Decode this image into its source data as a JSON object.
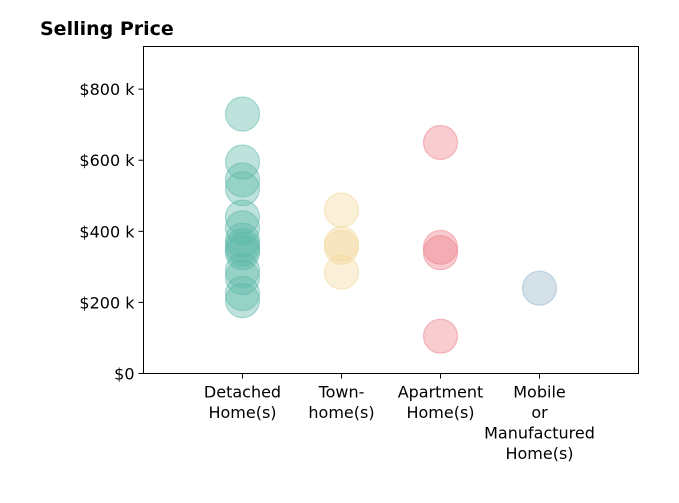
{
  "chart_data": {
    "type": "scatter",
    "title": "Selling Price",
    "xlabel": "",
    "ylabel": "",
    "categories": [
      [
        "Detached",
        "Home(s)"
      ],
      [
        "Town-",
        "home(s)"
      ],
      [
        "Apartment",
        "Home(s)"
      ],
      [
        "Mobile",
        "or",
        "Manufactured",
        "Home(s)"
      ]
    ],
    "y_ticks": [
      {
        "value": 0,
        "label": "$0"
      },
      {
        "value": 200000,
        "label": "$200 k"
      },
      {
        "value": 400000,
        "label": "$400 k"
      },
      {
        "value": 600000,
        "label": "$600 k"
      },
      {
        "value": 800000,
        "label": "$800 k"
      }
    ],
    "ylim": [
      0,
      920000
    ],
    "xlim": [
      -1,
      4
    ],
    "grid": false,
    "legend": "none",
    "colors": [
      "#5cb8a8",
      "#f2d89a",
      "#ee7f89",
      "#93b4c9"
    ],
    "series": [
      {
        "category_index": 0,
        "values": [
          730000,
          595000,
          545000,
          520000,
          440000,
          410000,
          375000,
          360000,
          350000,
          340000,
          290000,
          270000,
          225000,
          205000
        ]
      },
      {
        "category_index": 1,
        "values": [
          460000,
          365000,
          355000,
          285000
        ]
      },
      {
        "category_index": 2,
        "values": [
          650000,
          355000,
          340000,
          105000
        ]
      },
      {
        "category_index": 3,
        "values": [
          240000
        ]
      }
    ]
  }
}
